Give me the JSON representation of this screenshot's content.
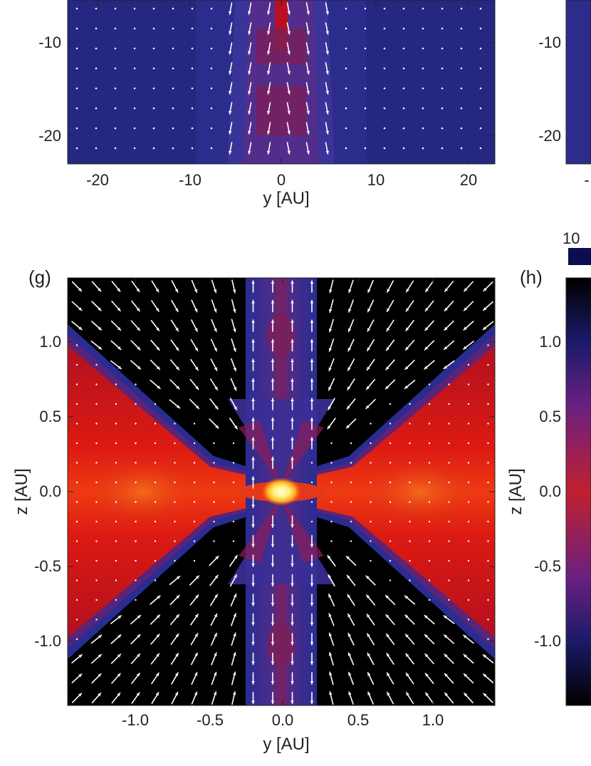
{
  "colors": {
    "background_dark": "#000000",
    "envelope_blue": "#2a2b8a",
    "outflow_purple": "#7a1f5a",
    "disk_red": "#d81a10",
    "disk_orange": "#f05a12",
    "core_yellow": "#fff080",
    "vector_white": "#ffffff"
  },
  "panels": {
    "top_left": {
      "xlabel": "y [AU]",
      "x_ticks": [
        "-20",
        "-10",
        "0",
        "10",
        "20"
      ],
      "y_ticks": [
        "-10",
        "-20"
      ]
    },
    "top_right": {
      "y_ticks": [
        "-10",
        "-20"
      ],
      "x_ticks_partial": [
        "-"
      ]
    },
    "g": {
      "label": "(g)",
      "xlabel": "y [AU]",
      "ylabel": "z [AU]",
      "x_ticks": [
        "-1.0",
        "-0.5",
        "0.0",
        "0.5",
        "1.0"
      ],
      "y_ticks": [
        "1.0",
        "0.5",
        "0.0",
        "-0.5",
        "-1.0"
      ]
    },
    "h": {
      "label": "(h)",
      "ylabel": "z [AU]",
      "y_ticks": [
        "1.0",
        "0.5",
        "0.0",
        "-0.5",
        "-1.0"
      ],
      "colorbar_label": "10"
    }
  },
  "chart_data": [
    {
      "type": "heatmap",
      "panel": "top_left",
      "xlabel": "y [AU]",
      "ylabel": "",
      "xlim": [
        -23,
        23
      ],
      "ylim": [
        -23,
        -4
      ],
      "x_ticks": [
        -20,
        -10,
        0,
        10,
        20
      ],
      "y_ticks": [
        -10,
        -20
      ],
      "overlay": "velocity vectors",
      "features": [
        "narrow vertical outflow along y=0"
      ]
    },
    {
      "type": "heatmap",
      "panel": "g",
      "xlabel": "y [AU]",
      "ylabel": "z [AU]",
      "xlim": [
        -1.45,
        1.45
      ],
      "ylim": [
        -1.45,
        1.45
      ],
      "x_ticks": [
        -1.0,
        -0.5,
        0.0,
        0.5,
        1.0
      ],
      "y_ticks": [
        1.0,
        0.5,
        0.0,
        -0.5,
        -1.0
      ],
      "overlay": "velocity vectors",
      "features": [
        "flared disk along z=0",
        "bright core at origin",
        "bipolar outflow cones"
      ]
    },
    {
      "type": "heatmap",
      "panel": "h",
      "ylabel": "z [AU]",
      "y_ticks": [
        1.0,
        0.5,
        0.0,
        -0.5,
        -1.0
      ]
    }
  ]
}
